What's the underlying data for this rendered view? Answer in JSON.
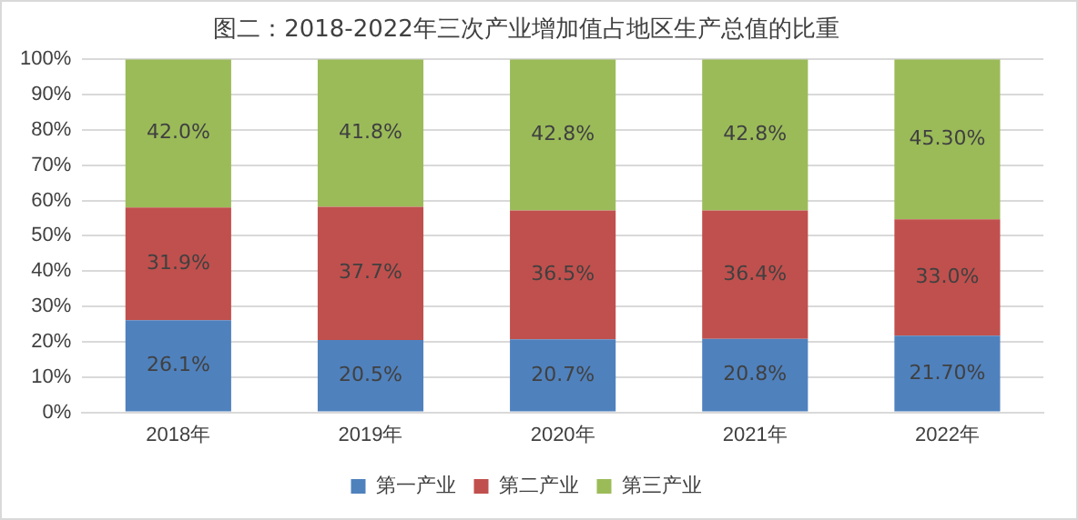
{
  "chart_data": {
    "type": "bar",
    "title": "图二：2018-2022年三次产业增加值占地区生产总值的比重",
    "categories": [
      "2018年",
      "2019年",
      "2020年",
      "2021年",
      "2022年"
    ],
    "stacked": true,
    "ylim": [
      0,
      100
    ],
    "yticks": [
      {
        "value": 0,
        "label": "0%"
      },
      {
        "value": 10,
        "label": "10%"
      },
      {
        "value": 20,
        "label": "20%"
      },
      {
        "value": 30,
        "label": "30%"
      },
      {
        "value": 40,
        "label": "40%"
      },
      {
        "value": 50,
        "label": "50%"
      },
      {
        "value": 60,
        "label": "60%"
      },
      {
        "value": 70,
        "label": "70%"
      },
      {
        "value": 80,
        "label": "80%"
      },
      {
        "value": 90,
        "label": "90%"
      },
      {
        "value": 100,
        "label": "100%"
      }
    ],
    "grid": "y",
    "legend": "bottom",
    "series": [
      {
        "name": "第一产业",
        "color": "#4f81bd",
        "values": [
          26.1,
          20.5,
          20.7,
          20.8,
          21.7
        ],
        "value_labels": [
          "26.1%",
          "20.5%",
          "20.7%",
          "20.8%",
          "21.70%"
        ]
      },
      {
        "name": "第二产业",
        "color": "#c0504d",
        "values": [
          31.9,
          37.7,
          36.5,
          36.4,
          33.0
        ],
        "value_labels": [
          "31.9%",
          "37.7%",
          "36.5%",
          "36.4%",
          "33.0%"
        ]
      },
      {
        "name": "第三产业",
        "color": "#9bbb59",
        "values": [
          42.0,
          41.8,
          42.8,
          42.8,
          45.3
        ],
        "value_labels": [
          "42.0%",
          "41.8%",
          "42.8%",
          "42.8%",
          "45.30%"
        ]
      }
    ]
  }
}
